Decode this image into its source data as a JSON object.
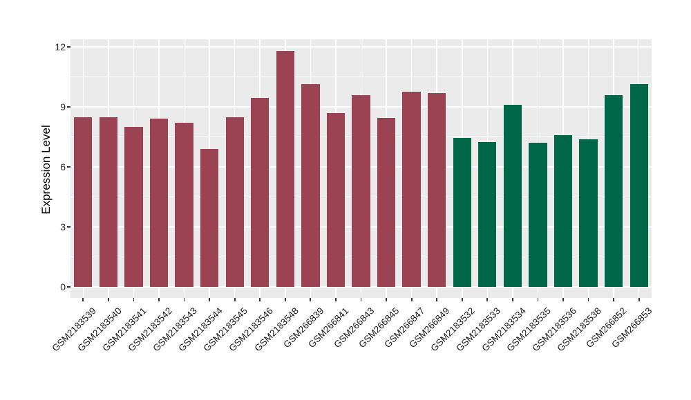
{
  "chart_data": {
    "type": "bar",
    "title": "",
    "xlabel": "",
    "ylabel": "Expression Level",
    "categories": [
      "GSM2183539",
      "GSM2183540",
      "GSM2183541",
      "GSM2183542",
      "GSM2183543",
      "GSM2183544",
      "GSM2183545",
      "GSM2183546",
      "GSM2183548",
      "GSM266839",
      "GSM266841",
      "GSM266843",
      "GSM266845",
      "GSM266847",
      "GSM266849",
      "GSM2183532",
      "GSM2183533",
      "GSM2183534",
      "GSM2183535",
      "GSM2183536",
      "GSM2183538",
      "GSM266852",
      "GSM266853"
    ],
    "values": [
      8.5,
      8.48,
      8.0,
      8.4,
      8.2,
      6.9,
      8.48,
      9.45,
      11.8,
      10.13,
      8.7,
      9.58,
      8.46,
      9.75,
      9.7,
      7.46,
      7.24,
      9.1,
      7.2,
      7.58,
      7.38,
      9.57,
      10.13
    ],
    "bar_colors": [
      "#9B4352",
      "#9B4352",
      "#9B4352",
      "#9B4352",
      "#9B4352",
      "#9B4352",
      "#9B4352",
      "#9B4352",
      "#9B4352",
      "#9B4352",
      "#9B4352",
      "#9B4352",
      "#9B4352",
      "#9B4352",
      "#9B4352",
      "#006648",
      "#006648",
      "#006648",
      "#006648",
      "#006648",
      "#006648",
      "#006648",
      "#006648"
    ],
    "group_colors": {
      "left_group": "#9B4352",
      "right_group": "#006648"
    },
    "group_split_index": 15,
    "yticks": [
      0,
      3,
      6,
      9,
      12
    ],
    "y_minor_ticks": [
      1.5,
      4.5,
      7.5,
      10.5
    ],
    "ylim": [
      0,
      12
    ],
    "grid": true,
    "legend": false,
    "panel_bg": "#EBEBEB",
    "grid_color": "#FFFFFF",
    "x_tick_rotation_deg": 45
  }
}
